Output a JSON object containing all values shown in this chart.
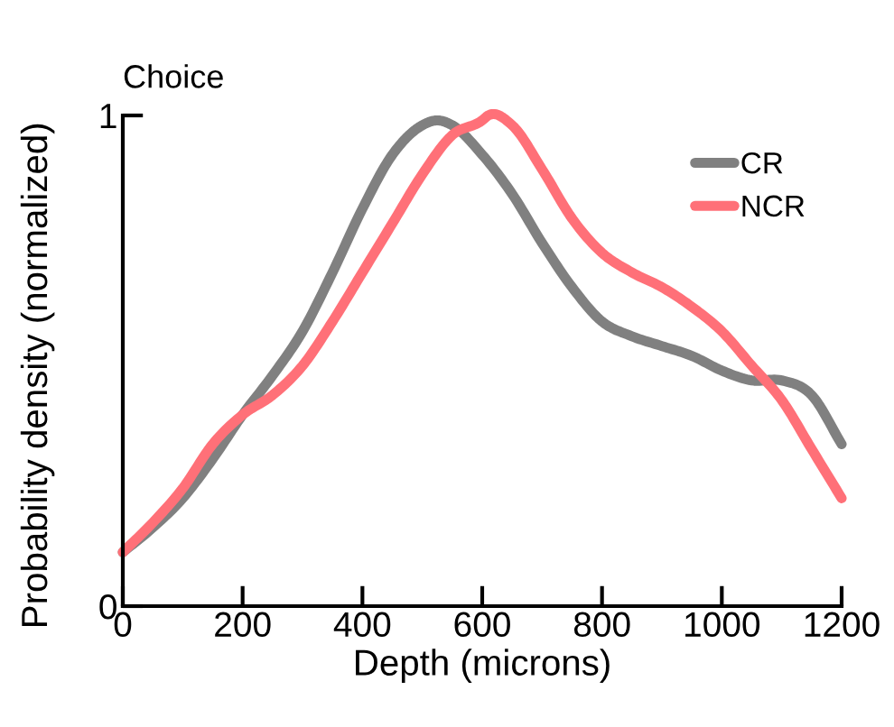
{
  "chart_data": {
    "type": "line",
    "title": "Choice",
    "xlabel": "Depth (microns)",
    "ylabel": "Probability density (normalized)",
    "xlim": [
      0,
      1200
    ],
    "xticks": [
      0,
      200,
      400,
      600,
      800,
      1000,
      1200
    ],
    "ylim": [
      0,
      1
    ],
    "yticks": [
      0,
      1
    ],
    "grid": false,
    "legend": "top right",
    "marker": "none",
    "line_style": "solid",
    "series": [
      {
        "name": "CR",
        "color": "#808080",
        "x": [
          0,
          50,
          100,
          150,
          200,
          250,
          300,
          350,
          400,
          450,
          500,
          525,
          550,
          600,
          650,
          700,
          750,
          800,
          850,
          900,
          950,
          1000,
          1050,
          1100,
          1150,
          1200
        ],
        "values": [
          0.11,
          0.16,
          0.22,
          0.3,
          0.39,
          0.47,
          0.56,
          0.68,
          0.81,
          0.92,
          0.98,
          0.99,
          0.98,
          0.92,
          0.84,
          0.74,
          0.65,
          0.58,
          0.55,
          0.53,
          0.51,
          0.48,
          0.46,
          0.46,
          0.43,
          0.33
        ]
      },
      {
        "name": "NCR",
        "color": "#ff7078",
        "x": [
          0,
          50,
          100,
          150,
          200,
          250,
          300,
          350,
          400,
          450,
          500,
          550,
          600,
          610,
          650,
          700,
          750,
          800,
          850,
          900,
          950,
          1000,
          1050,
          1100,
          1150,
          1200
        ],
        "values": [
          0.11,
          0.17,
          0.24,
          0.33,
          0.39,
          0.43,
          0.49,
          0.58,
          0.68,
          0.78,
          0.88,
          0.96,
          0.99,
          1.0,
          0.98,
          0.89,
          0.79,
          0.72,
          0.68,
          0.65,
          0.61,
          0.56,
          0.49,
          0.42,
          0.32,
          0.22
        ]
      }
    ]
  }
}
